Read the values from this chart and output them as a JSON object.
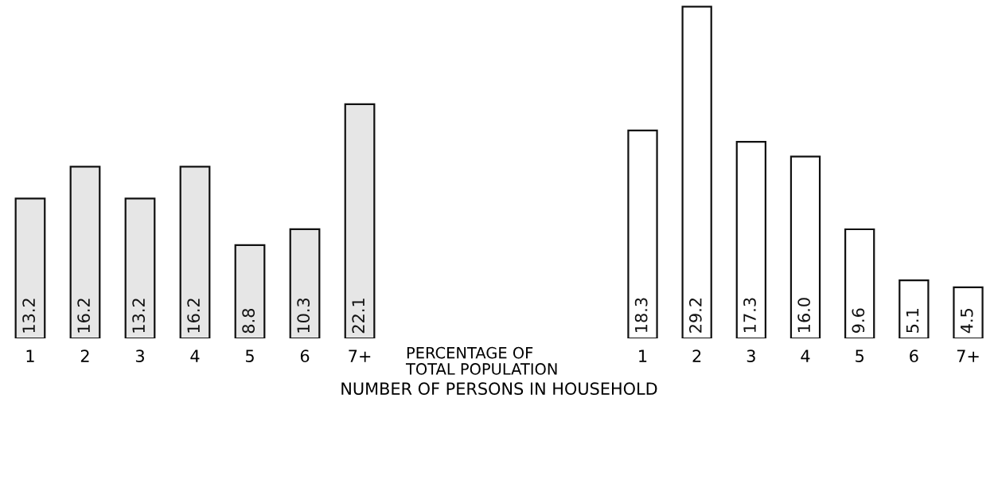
{
  "chart_data": [
    {
      "type": "bar",
      "categories": [
        "1",
        "2",
        "3",
        "4",
        "5",
        "6",
        "7+"
      ],
      "values": [
        13.2,
        16.2,
        13.2,
        16.2,
        8.8,
        10.3,
        22.1
      ],
      "value_labels": [
        "13.2",
        "16.2",
        "13.2",
        "16.2",
        "8.8",
        "10.3",
        "22.1"
      ],
      "color": "#e6e6e6",
      "xlabel": "NUMBER OF PERSONS IN HOUSEHOLD",
      "tick_labels": "x",
      "grid": false,
      "legend": false
    },
    {
      "type": "bar",
      "categories": [
        "1",
        "2",
        "3",
        "4",
        "5",
        "6",
        "7+"
      ],
      "values": [
        18.3,
        29.2,
        17.3,
        16.0,
        9.6,
        5.1,
        4.5
      ],
      "value_labels": [
        "18.3",
        "29.2",
        "17.3",
        "16.0",
        "9.6",
        "5.1",
        "4.5"
      ],
      "color": "#ffffff",
      "ylabel": "PERCENTAGE OF\nTOTAL POPULATION",
      "tick_labels": "x",
      "grid": false,
      "legend": false
    }
  ]
}
